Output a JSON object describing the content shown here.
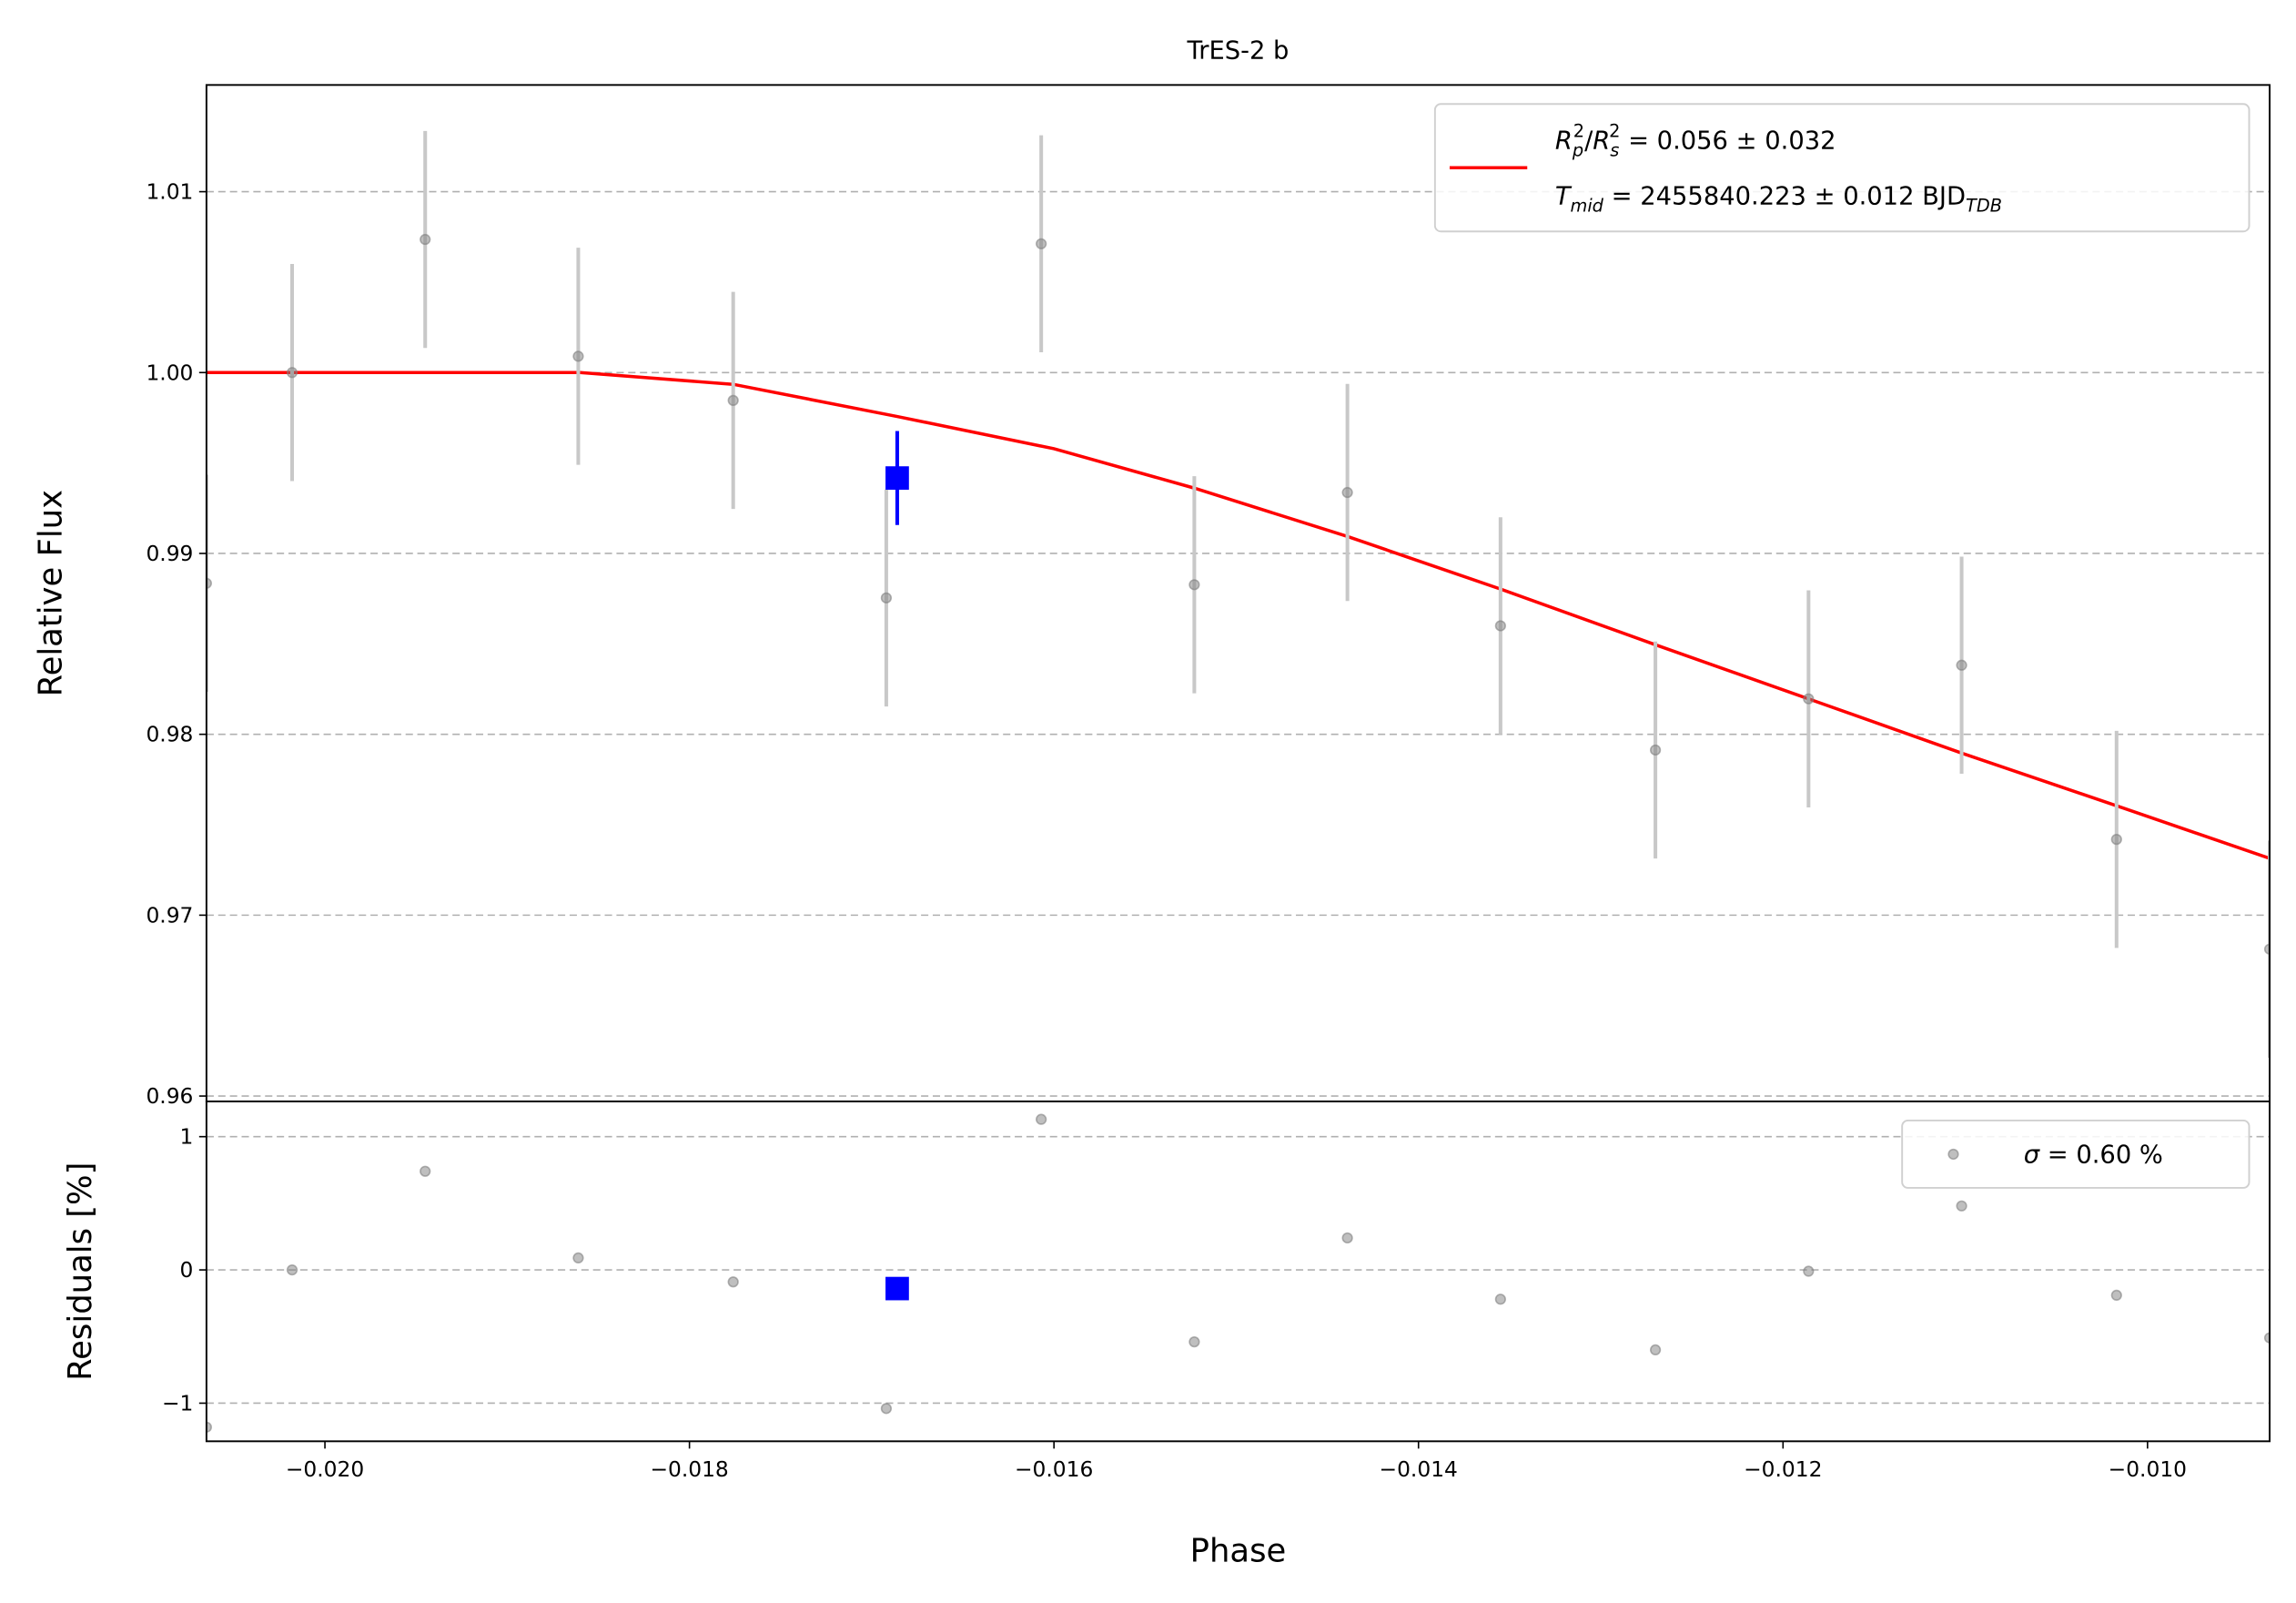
{
  "chart_data": [
    {
      "type": "scatter",
      "title": "TrES-2 b",
      "ylabel": "Relative Flux",
      "xlim": [
        -0.02065,
        -0.00933
      ],
      "ylim": [
        0.9597,
        1.0159
      ],
      "yticks": [
        0.96,
        0.97,
        0.98,
        0.99,
        {
          "value": 1.0,
          "label": "1.00"
        },
        1.01
      ],
      "grid": true,
      "legend": "upper right",
      "series": [
        {
          "type": "line",
          "color": "#ff0000",
          "name": [
            [
              {
                "text": "R",
                "italic": true
              },
              {
                "text": "p",
                "italic": true,
                "sub": true
              },
              {
                "text": "2",
                "sup": true
              },
              {
                "text": "/"
              },
              {
                "text": "R",
                "italic": true
              },
              {
                "text": "s",
                "italic": true,
                "sub": true
              },
              {
                "text": "2",
                "sup": true
              },
              {
                "text": " = 0.056 ± 0.032"
              }
            ],
            [
              {
                "text": "T",
                "italic": true
              },
              {
                "text": "mid",
                "italic": true,
                "sub": true
              },
              {
                "text": " = 2455840.223 ± 0.012 BJD"
              },
              {
                "text": "TDB",
                "italic": true,
                "sub": true
              }
            ]
          ],
          "x": [
            -0.02065,
            -0.0195,
            -0.0186,
            -0.01776,
            -0.01686,
            -0.016,
            -0.01523,
            -0.01439,
            -0.01355,
            -0.0127,
            -0.01186,
            -0.01102,
            -0.01017,
            -0.00933
          ],
          "values": [
            1.0,
            1.0,
            1.0,
            0.99935,
            0.99757,
            0.99579,
            0.99361,
            0.99094,
            0.98803,
            0.98495,
            0.98196,
            0.97896,
            0.97605,
            0.97314
          ]
        },
        {
          "type": "errorbar",
          "color": "#808080",
          "error_color": "#c8c8c8",
          "x": [
            -0.02065,
            -0.02018,
            -0.01945,
            -0.01861,
            -0.01776,
            -0.01692,
            -0.01607,
            -0.01523,
            -0.01439,
            -0.01355,
            -0.0127,
            -0.01186,
            -0.01102,
            -0.01017,
            -0.00933
          ],
          "values": [
            0.98835,
            1.0,
            1.00736,
            1.0009,
            0.99846,
            0.98754,
            1.00712,
            0.98827,
            0.99337,
            0.986,
            0.97913,
            0.98196,
            0.98382,
            0.97419,
            0.96812
          ],
          "errors": [
            0.006,
            0.006,
            0.006,
            0.006,
            0.006,
            0.006,
            0.006,
            0.006,
            0.006,
            0.006,
            0.006,
            0.006,
            0.006,
            0.006,
            0.006
          ]
        },
        {
          "type": "errorbar",
          "color": "#0000ff",
          "error_color": "#0000ff",
          "marker": "square",
          "x": [
            -0.01686
          ],
          "values": [
            0.99417
          ],
          "errors": [
            0.0026
          ]
        }
      ]
    },
    {
      "type": "scatter",
      "xlabel": "Phase",
      "ylabel": "Residuals [%]",
      "xlim": [
        -0.02065,
        -0.00933
      ],
      "ylim": [
        -1.286,
        1.264
      ],
      "xticks": [
        {
          "value": -0.02,
          "label": "−0.020"
        },
        {
          "value": -0.018,
          "label": "−0.018"
        },
        {
          "value": -0.016,
          "label": "−0.016"
        },
        {
          "value": -0.014,
          "label": "−0.014"
        },
        {
          "value": -0.012,
          "label": "−0.012"
        },
        {
          "value": -0.01,
          "label": "−0.010"
        }
      ],
      "yticks": [
        {
          "value": -1,
          "label": "−1"
        },
        0,
        1
      ],
      "grid": true,
      "legend": "upper right",
      "series": [
        {
          "type": "scatter",
          "color": "#808080",
          "name": [
            [
              {
                "text": "σ",
                "italic": true
              },
              {
                "text": " = 0.60 %"
              }
            ]
          ],
          "x": [
            -0.02065,
            -0.02018,
            -0.01945,
            -0.01861,
            -0.01776,
            -0.01692,
            -0.01607,
            -0.01523,
            -0.01439,
            -0.01355,
            -0.0127,
            -0.01186,
            -0.01102,
            -0.01017,
            -0.00933
          ],
          "values": [
            -1.18,
            0.0,
            0.74,
            0.09,
            -0.09,
            -1.04,
            1.13,
            -0.54,
            0.24,
            -0.22,
            -0.6,
            -0.01,
            0.48,
            -0.19,
            -0.51
          ]
        },
        {
          "type": "scatter",
          "color": "#0000ff",
          "marker": "square",
          "x": [
            -0.01686
          ],
          "values": [
            -0.14
          ]
        }
      ]
    }
  ]
}
